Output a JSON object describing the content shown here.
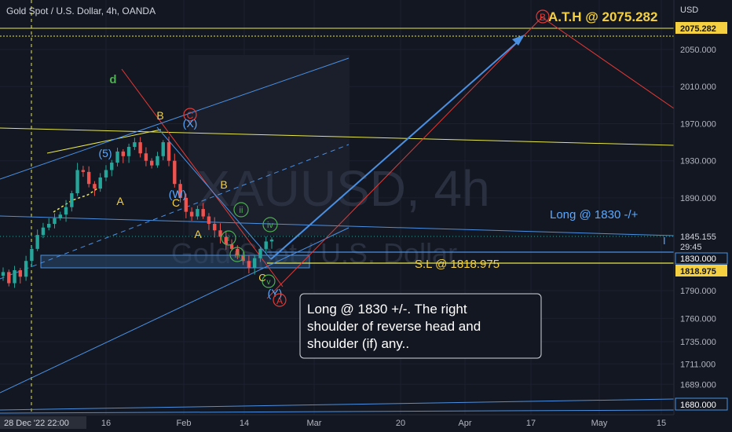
{
  "header": {
    "symbol_info": "Gold Spot / U.S. Dollar, 4h, OANDA",
    "currency": "USD"
  },
  "watermark": {
    "ticker": "XAUUSD, 4h",
    "name": "Gold Spot / U.S. Dollar"
  },
  "annotations": {
    "ath": "A.T.H @ 2075.282",
    "long": "Long @ 1830 -/+",
    "stop_loss": "S.L @ 1818.975",
    "note_line1": "Long @ 1830 +/-. The right",
    "note_line2": "shoulder of reverse head and",
    "note_line3": "shoulder (if) any..",
    "wave_d": "d",
    "wave_5": "(5)",
    "wave_B1": "B",
    "wave_A1": "A",
    "wave_C1": "C",
    "wave_W": "(W)",
    "wave_X": "(X)",
    "wave_C_circ": "C",
    "wave_B2": "B",
    "wave_A2": "A",
    "wave_i": "i",
    "wave_ii": "ii",
    "wave_iii": "iii",
    "wave_iv": "iv",
    "wave_v": "v",
    "wave_C2": "C",
    "wave_Y": "(Y)",
    "wave_A_circ": "A",
    "wave_B_circ": "B",
    "cursor_mark": "I"
  },
  "price_axis": {
    "ticks": [
      "2050.000",
      "2010.000",
      "1970.000",
      "1930.000",
      "1890.000",
      "1790.000",
      "1760.000",
      "1735.000",
      "1711.000",
      "1689.000"
    ],
    "tags": {
      "ath": "2075.282",
      "current": "1845.155",
      "countdown": "29:45",
      "long": "1830.000",
      "sl": "1818.975",
      "bottom": "1680.000"
    }
  },
  "time_axis": {
    "cursor_label": "28 Dec '22  22:00",
    "ticks": [
      "16",
      "Feb",
      "14",
      "Mar",
      "20",
      "Apr",
      "17",
      "May",
      "15"
    ]
  },
  "colors": {
    "background": "#131722",
    "candle_up": "#26a69a",
    "candle_down": "#ef5350",
    "blue_line": "#4a90e2",
    "yellow_line": "#e8e84a",
    "red_line": "#e53935",
    "label_yellow": "#f5d142",
    "label_blue": "#5aa9ff",
    "label_green": "#4caf50"
  },
  "chart_data": {
    "type": "candlestick",
    "title": "Gold Spot / U.S. Dollar, 4h, OANDA",
    "ylim": [
      1680,
      2085
    ],
    "key_levels": {
      "ath": 2075.282,
      "current": 1845.155,
      "long_entry": 1830,
      "stop_loss": 1818.975,
      "bottom_line": 1680
    },
    "x_ticks": [
      "16",
      "Feb",
      "14",
      "Mar",
      "20",
      "Apr",
      "17",
      "May",
      "15"
    ],
    "y_ticks": [
      2050,
      2010,
      1970,
      1930,
      1890,
      1790,
      1760,
      1735,
      1711,
      1689
    ],
    "close_path": [
      1810,
      1798,
      1812,
      1805,
      1822,
      1835,
      1850,
      1858,
      1862,
      1868,
      1872,
      1880,
      1895,
      1920,
      1918,
      1905,
      1900,
      1912,
      1920,
      1928,
      1940,
      1935,
      1945,
      1950,
      1938,
      1930,
      1925,
      1935,
      1950,
      1930,
      1905,
      1890,
      1875,
      1870,
      1878,
      1870,
      1862,
      1855,
      1848,
      1840,
      1835,
      1828,
      1822,
      1815,
      1825,
      1835,
      1843,
      1845
    ]
  }
}
